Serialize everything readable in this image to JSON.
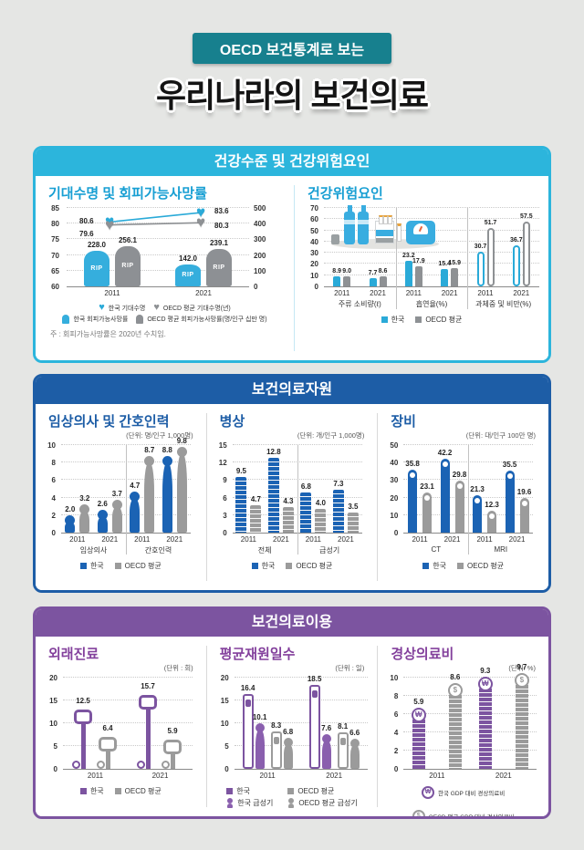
{
  "header": {
    "badge": "OECD 보건통계로 보는",
    "title": "우리나라의 보건의료"
  },
  "accent_colors": {
    "teal": "#17808e",
    "section1": "#2cb5dc",
    "section2": "#1d5da6",
    "section3": "#7c54a0",
    "korea_light_blue": "#2aaad8",
    "korea_dark_blue": "#1b63b4",
    "korea_purple": "#7c54a0",
    "oecd_gray": "#9b9b9b"
  },
  "sections": {
    "health": {
      "title": "건강수준 및 건강위험요인",
      "panels": {
        "life": {
          "title": "기대수명 및 회피가능사망률",
          "note": "주 : 회피가능사망률은 2020년 수치임."
        },
        "risk": {
          "title": "건강위험요인"
        }
      }
    },
    "resources": {
      "title": "보건의료자원",
      "panels": {
        "staff": {
          "title": "임상의사 및 간호인력",
          "unit": "(단위: 명/인구 1,000명)"
        },
        "beds": {
          "title": "병상",
          "unit": "(단위: 개/인구 1,000명)"
        },
        "equipment": {
          "title": "장비",
          "unit": "(단위: 대/인구 100만 명)"
        }
      }
    },
    "utilization": {
      "title": "보건의료이용",
      "panels": {
        "outpatient": {
          "title": "외래진료",
          "unit": "(단위 : 회)"
        },
        "stay": {
          "title": "평균재원일수",
          "unit": "(단위 : 일)"
        },
        "spending": {
          "title": "경상의료비",
          "unit": "(단위: %)"
        }
      }
    }
  },
  "chart_data": [
    {
      "id": "life",
      "type": "combo-line-bar",
      "title": "기대수명 및 회피가능사망률",
      "x": [
        "2011",
        "2021"
      ],
      "y_left": {
        "label": "기대수명(년)",
        "min": 60,
        "max": 85,
        "ticks": [
          60,
          65,
          70,
          75,
          80,
          85
        ]
      },
      "y_right": {
        "label": "회피가능사망률(명/인구 십만 명)",
        "min": 0,
        "max": 500,
        "ticks": [
          0,
          100,
          200,
          300,
          400,
          500
        ]
      },
      "lines": [
        {
          "name": "한국 기대수명",
          "color": "#2aaad8",
          "values": [
            "80.6",
            "83.6"
          ]
        },
        {
          "name": "OECD 평균 기대수명(년)",
          "color": "#8e9194",
          "values": [
            "79.6",
            "80.3"
          ]
        }
      ],
      "bars": [
        {
          "name": "한국 회피가능사망률",
          "color": "#35aedd",
          "values": [
            "228.0",
            "142.0"
          ]
        },
        {
          "name": "OECD 평균 회피가능사망률(명/인구 십만 명)",
          "color": "#8d9094",
          "values": [
            "256.1",
            "239.1"
          ]
        }
      ],
      "note": "주 : 회피가능사망률은 2020년 수치임."
    },
    {
      "id": "risk",
      "type": "bar",
      "title": "건강위험요인",
      "ylim": [
        0,
        70
      ],
      "yticks": [
        0,
        10,
        20,
        30,
        40,
        50,
        60,
        70
      ],
      "groups": [
        {
          "label": "주류 소비량(ℓ)",
          "x": [
            "2011",
            "2021"
          ]
        },
        {
          "label": "흡연율(%)",
          "x": [
            "2011",
            "2021"
          ]
        },
        {
          "label": "과체중 및 비만(%)",
          "x": [
            "2011",
            "2021"
          ]
        }
      ],
      "series": [
        {
          "name": "한국",
          "color": "#2aaad8",
          "values": [
            [
              "8.9",
              "7.7"
            ],
            [
              "23.2",
              "15.4"
            ],
            [
              "30.7",
              "36.7"
            ]
          ]
        },
        {
          "name": "OECD 평균",
          "color": "#8e9194",
          "values": [
            [
              "9.0",
              "8.6"
            ],
            [
              "17.9",
              "15.9"
            ],
            [
              "51.7",
              "57.5"
            ]
          ]
        }
      ]
    },
    {
      "id": "staff",
      "type": "bar",
      "title": "임상의사 및 간호인력",
      "unit": "(단위: 명/인구 1,000명)",
      "ylim": [
        0,
        10
      ],
      "yticks": [
        0,
        2,
        4,
        6,
        8,
        10
      ],
      "groups": [
        {
          "label": "임상의사",
          "x": [
            "2011",
            "2021"
          ]
        },
        {
          "label": "간호인력",
          "x": [
            "2011",
            "2021"
          ]
        }
      ],
      "series": [
        {
          "name": "한국",
          "color": "#1b63b4",
          "values": [
            [
              "2.0",
              "2.6"
            ],
            [
              "4.7",
              "8.8"
            ]
          ]
        },
        {
          "name": "OECD 평균",
          "color": "#9b9b9b",
          "values": [
            [
              "3.2",
              "3.7"
            ],
            [
              "8.7",
              "9.8"
            ]
          ]
        }
      ]
    },
    {
      "id": "beds",
      "type": "bar",
      "title": "병상",
      "unit": "(단위: 개/인구 1,000명)",
      "ylim": [
        0,
        15
      ],
      "yticks": [
        0,
        3,
        6,
        9,
        12,
        15
      ],
      "groups": [
        {
          "label": "전체",
          "x": [
            "2011",
            "2021"
          ]
        },
        {
          "label": "급성기",
          "x": [
            "2011",
            "2021"
          ]
        }
      ],
      "series": [
        {
          "name": "한국",
          "color": "#1b63b4",
          "values": [
            [
              "9.5",
              "12.8"
            ],
            [
              "6.8",
              "7.3"
            ]
          ]
        },
        {
          "name": "OECD 평균",
          "color": "#9b9b9b",
          "values": [
            [
              "4.7",
              "4.3"
            ],
            [
              "4.0",
              "3.5"
            ]
          ]
        }
      ]
    },
    {
      "id": "equipment",
      "type": "bar",
      "title": "장비",
      "unit": "(단위: 대/인구 100만 명)",
      "ylim": [
        0,
        50
      ],
      "yticks": [
        0,
        10,
        20,
        30,
        40,
        50
      ],
      "groups": [
        {
          "label": "CT",
          "x": [
            "2011",
            "2021"
          ]
        },
        {
          "label": "MRI",
          "x": [
            "2011",
            "2021"
          ]
        }
      ],
      "series": [
        {
          "name": "한국",
          "color": "#1b63b4",
          "values": [
            [
              "35.8",
              "42.2"
            ],
            [
              "21.3",
              "35.5"
            ]
          ]
        },
        {
          "name": "OECD 평균",
          "color": "#9b9b9b",
          "values": [
            [
              "23.1",
              "29.8"
            ],
            [
              "12.3",
              "19.6"
            ]
          ]
        }
      ]
    },
    {
      "id": "outpatient",
      "type": "bar",
      "title": "외래진료",
      "unit": "(단위 : 회)",
      "ylim": [
        0,
        20
      ],
      "yticks": [
        0,
        5,
        10,
        15,
        20
      ],
      "groups": [
        {
          "label": "",
          "x": [
            "2011",
            "2021"
          ]
        }
      ],
      "series": [
        {
          "name": "한국",
          "color": "#7c54a0",
          "values": [
            [
              "12.5",
              "15.7"
            ]
          ]
        },
        {
          "name": "OECD 평균",
          "color": "#9b9b9b",
          "values": [
            [
              "6.4",
              "5.9"
            ]
          ]
        }
      ]
    },
    {
      "id": "stay",
      "type": "bar",
      "title": "평균재원일수",
      "unit": "(단위 : 일)",
      "ylim": [
        0,
        20
      ],
      "yticks": [
        0,
        5,
        10,
        15,
        20
      ],
      "groups": [
        {
          "label": "",
          "x": [
            "2011",
            "2021"
          ]
        }
      ],
      "series": [
        {
          "name": "한국",
          "color": "#7c54a0",
          "values": [
            [
              "16.4",
              "18.5"
            ]
          ]
        },
        {
          "name": "한국 급성기",
          "color": "#8a5fae",
          "values": [
            [
              "10.1",
              "7.6"
            ]
          ]
        },
        {
          "name": "OECD 평균",
          "color": "#9b9b9b",
          "values": [
            [
              "8.3",
              "8.1"
            ]
          ]
        },
        {
          "name": "OECD 평균 급성기",
          "color": "#9b9b9b",
          "values": [
            [
              "6.8",
              "6.6"
            ]
          ]
        }
      ]
    },
    {
      "id": "spending",
      "type": "bar",
      "title": "경상의료비",
      "unit": "(단위: %)",
      "ylim": [
        0,
        10
      ],
      "yticks": [
        0,
        2,
        4,
        6,
        8,
        10
      ],
      "groups": [
        {
          "label": "",
          "x": [
            "2011",
            "2021"
          ]
        }
      ],
      "series": [
        {
          "name": "한국 GDP 대비 경상의료비",
          "color": "#7c54a0",
          "values": [
            [
              "5.9",
              "9.3"
            ]
          ]
        },
        {
          "name": "OECD 평균 GDP 대비 경상의료비",
          "color": "#9b9b9b",
          "values": [
            [
              "8.6",
              "9.7"
            ]
          ]
        }
      ]
    }
  ]
}
